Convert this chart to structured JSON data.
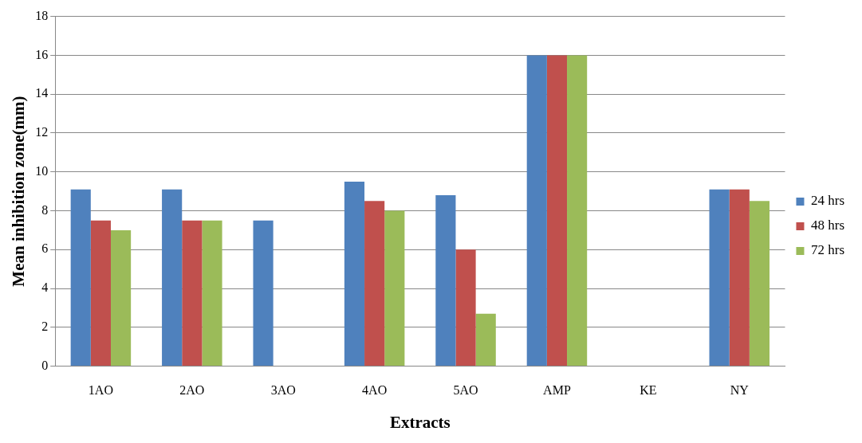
{
  "chart_data": {
    "type": "bar",
    "xlabel": "Extracts",
    "ylabel": "Mean inhibition zone(mm)",
    "categories": [
      "1AO",
      "2AO",
      "3AO",
      "4AO",
      "5AO",
      "AMP",
      "KE",
      "NY"
    ],
    "series": [
      {
        "name": "24 hrs",
        "color": "#4f81bd",
        "values": [
          9.1,
          9.1,
          7.5,
          9.5,
          8.8,
          16,
          0,
          9.1
        ]
      },
      {
        "name": "48 hrs",
        "color": "#c0504d",
        "values": [
          7.5,
          7.5,
          0,
          8.5,
          6.0,
          16,
          0,
          9.1
        ]
      },
      {
        "name": "72 hrs",
        "color": "#9bbb59",
        "values": [
          7.0,
          7.5,
          0,
          8.0,
          2.7,
          16,
          0,
          8.5
        ]
      }
    ],
    "ylim": [
      0,
      18
    ],
    "yticks": [
      0,
      2,
      4,
      6,
      8,
      10,
      12,
      14,
      16,
      18
    ],
    "grid": "y",
    "legend": "right"
  }
}
